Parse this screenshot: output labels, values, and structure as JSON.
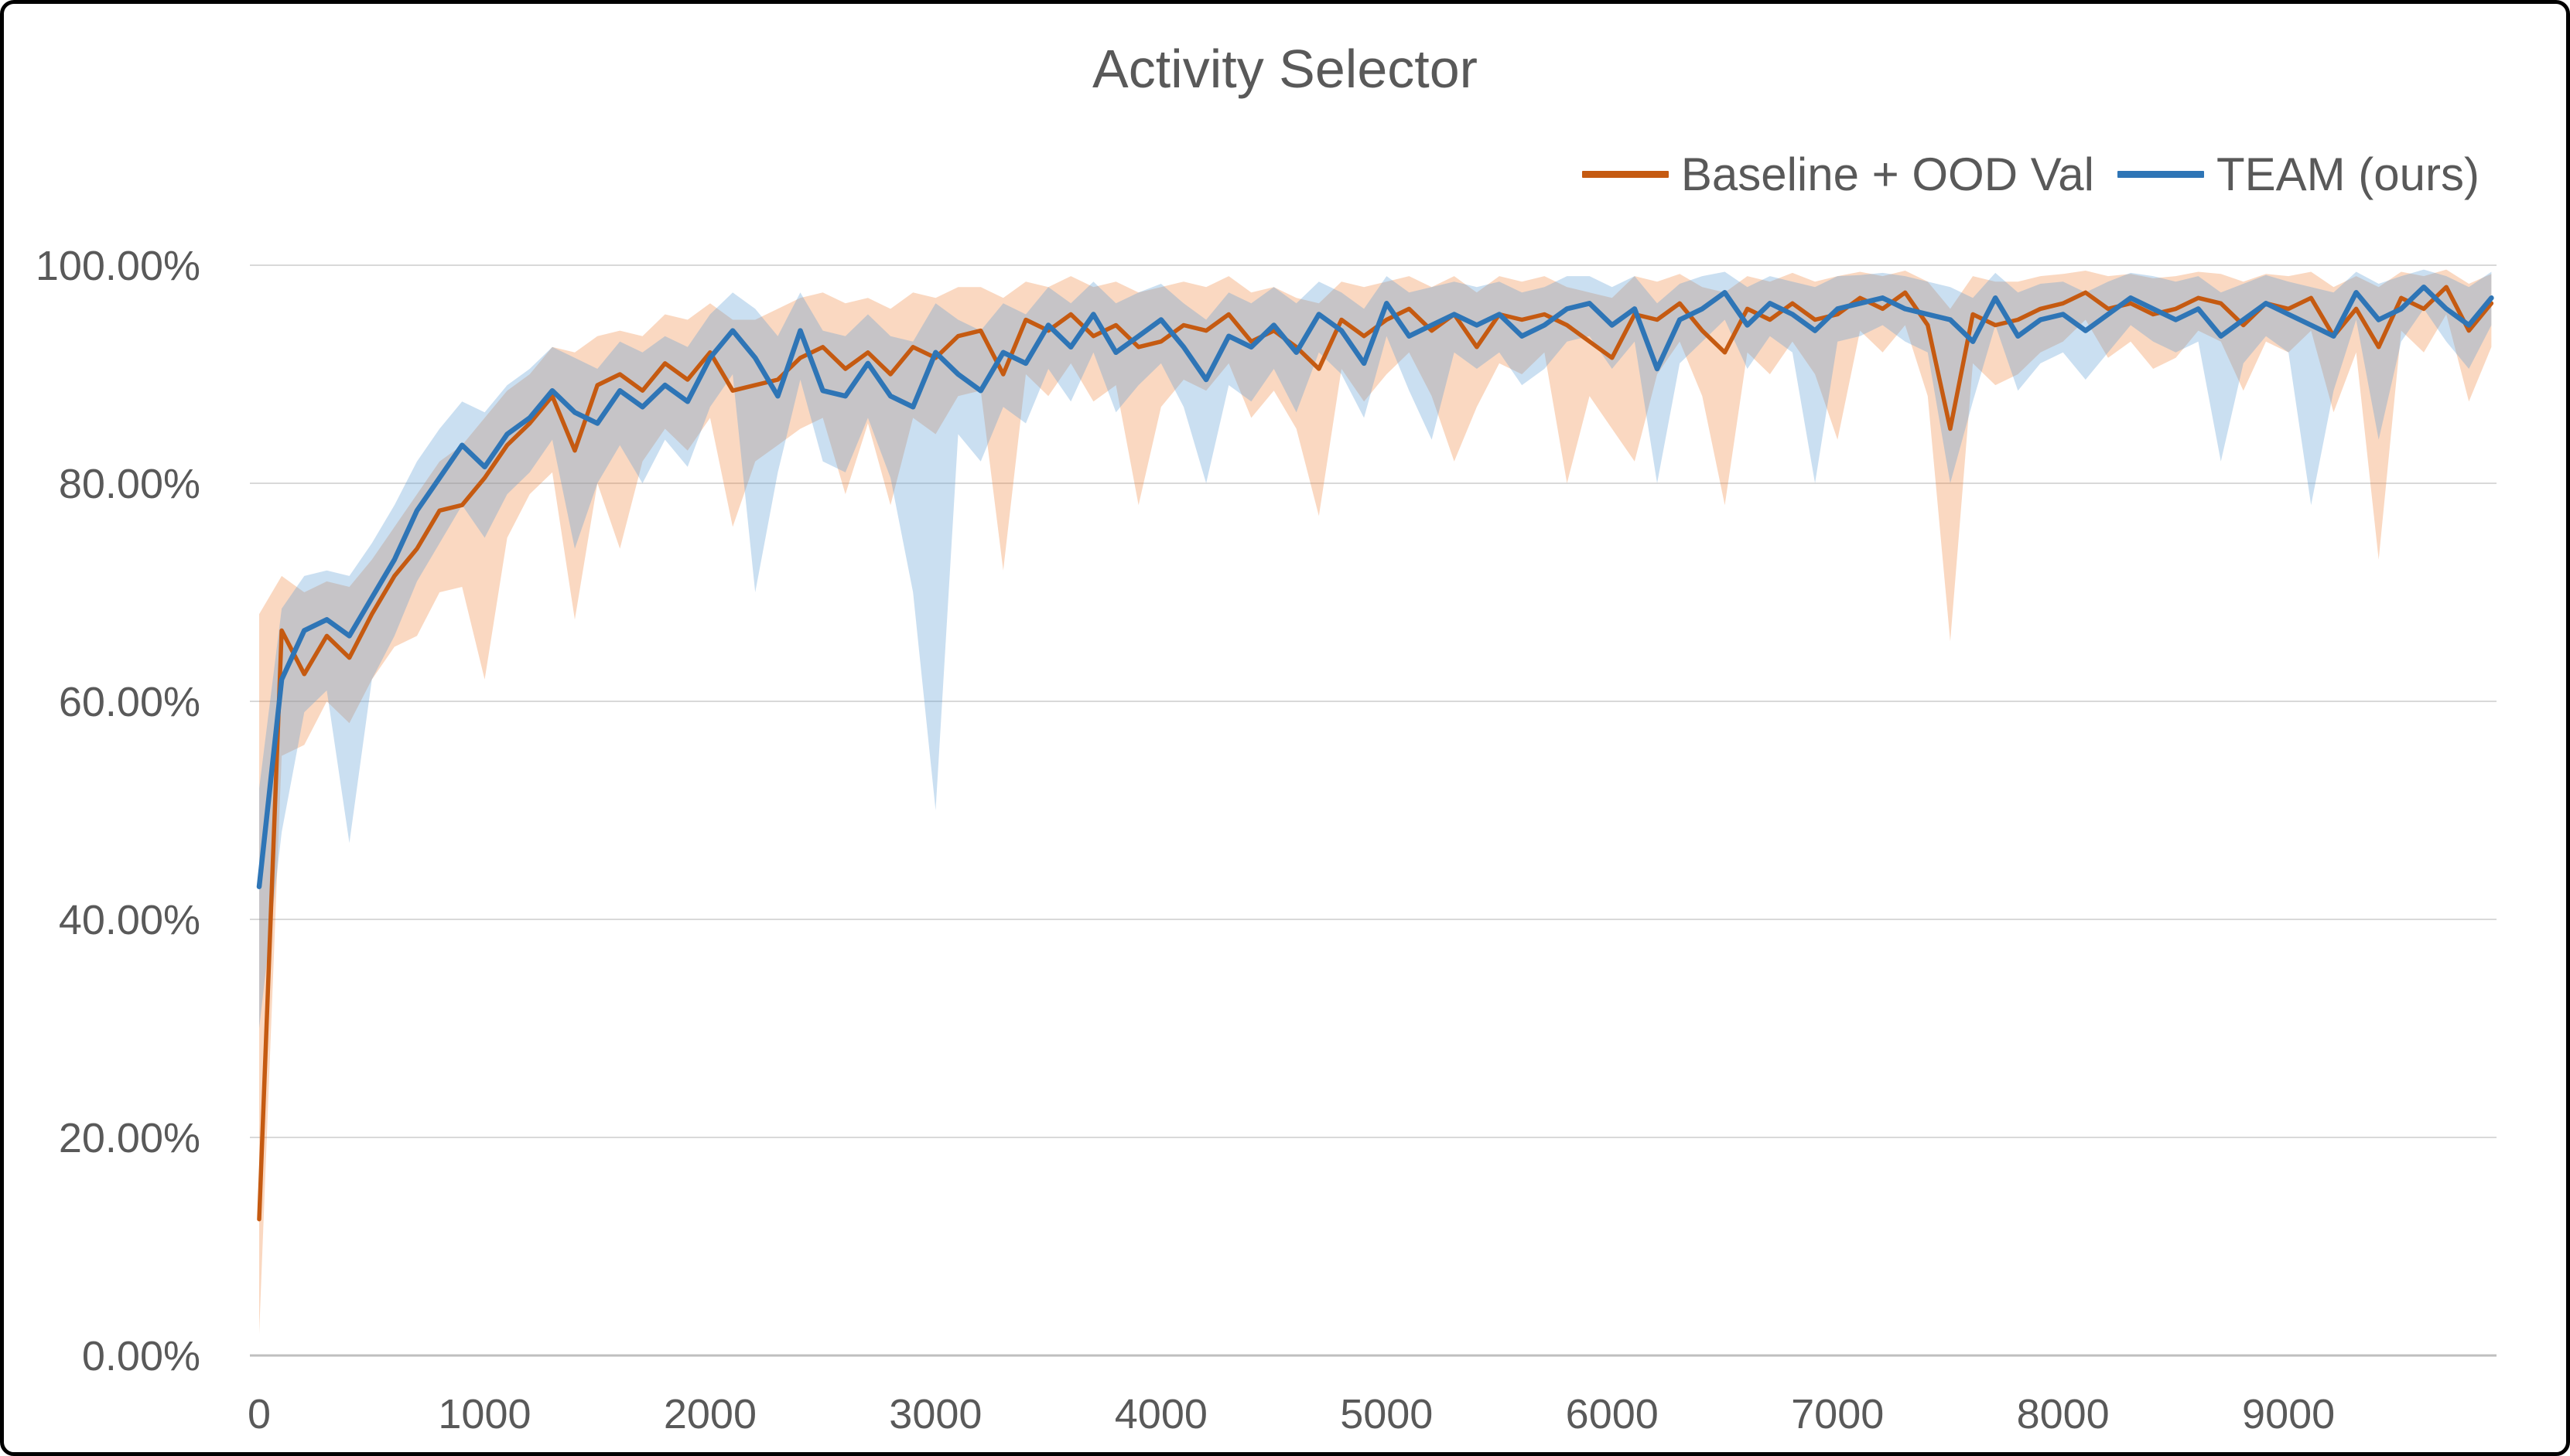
{
  "chart_data": {
    "type": "line",
    "title": "Activity Selector",
    "xlabel": "",
    "ylabel": "",
    "xlim": [
      0,
      9950
    ],
    "ylim": [
      0,
      100
    ],
    "grid": "horizontal",
    "legend_position": "top-right",
    "text_color": "#595959",
    "grid_color": "#D9D9D9",
    "axis_color": "#BFBFBF",
    "x_ticks": {
      "values": [
        0,
        1000,
        2000,
        3000,
        4000,
        5000,
        6000,
        7000,
        8000,
        9000
      ],
      "labels": [
        "0",
        "1000",
        "2000",
        "3000",
        "4000",
        "5000",
        "6000",
        "7000",
        "8000",
        "9000"
      ]
    },
    "y_ticks": {
      "values": [
        0,
        20,
        40,
        60,
        80,
        100
      ],
      "labels": [
        "0.00%",
        "20.00%",
        "40.00%",
        "60.00%",
        "80.00%",
        "100.00%"
      ]
    },
    "x": [
      0,
      100,
      200,
      300,
      400,
      500,
      600,
      700,
      800,
      900,
      1000,
      1100,
      1200,
      1300,
      1400,
      1500,
      1600,
      1700,
      1800,
      1900,
      2000,
      2100,
      2200,
      2300,
      2400,
      2500,
      2600,
      2700,
      2800,
      2900,
      3000,
      3100,
      3200,
      3300,
      3400,
      3500,
      3600,
      3700,
      3800,
      3900,
      4000,
      4100,
      4200,
      4300,
      4400,
      4500,
      4600,
      4700,
      4800,
      4900,
      5000,
      5100,
      5200,
      5300,
      5400,
      5500,
      5600,
      5700,
      5800,
      5900,
      6000,
      6100,
      6200,
      6300,
      6400,
      6500,
      6600,
      6700,
      6800,
      6900,
      7000,
      7100,
      7200,
      7300,
      7400,
      7500,
      7600,
      7700,
      7800,
      7900,
      8000,
      8100,
      8200,
      8300,
      8400,
      8500,
      8600,
      8700,
      8800,
      8900,
      9000,
      9100,
      9200,
      9300,
      9400,
      9500,
      9600,
      9700,
      9800,
      9900
    ],
    "series": [
      {
        "name": "Baseline + OOD Val",
        "color": "#C55A11",
        "band_color": "rgba(237,125,49,0.30)",
        "values": [
          12.5,
          66.5,
          62.5,
          66,
          64,
          68,
          71.5,
          74,
          77.5,
          78,
          80.5,
          83.5,
          85.5,
          88,
          83,
          89,
          90,
          88.5,
          91,
          89.5,
          92,
          88.5,
          89,
          89.5,
          91.5,
          92.5,
          90.5,
          92,
          90,
          92.5,
          91.5,
          93.5,
          94,
          90,
          95,
          94,
          95.5,
          93.5,
          94.5,
          92.5,
          93,
          94.5,
          94,
          95.5,
          93,
          94,
          92.5,
          90.5,
          95,
          93.5,
          95,
          96,
          94,
          95.5,
          92.5,
          95.5,
          95,
          95.5,
          94.5,
          93,
          91.5,
          95.5,
          95,
          96.5,
          94,
          92,
          96,
          95,
          96.5,
          95,
          95.5,
          97,
          96,
          97.5,
          94.5,
          85,
          95.5,
          94.5,
          95,
          96,
          96.5,
          97.5,
          96,
          96.5,
          95.5,
          96,
          97,
          96.5,
          94.5,
          96.5,
          96,
          97,
          93.5,
          96,
          92.5,
          97,
          96,
          98,
          94,
          96.5
        ],
        "band_lo": [
          2,
          55,
          56,
          60,
          58,
          62,
          65,
          66,
          70,
          70.5,
          62,
          75,
          79,
          81,
          67.5,
          80,
          74,
          82,
          85,
          83,
          86,
          76,
          82,
          83.5,
          85,
          86,
          79,
          85.5,
          78,
          86,
          84.5,
          88,
          88.5,
          72,
          90,
          88,
          91,
          87.5,
          89,
          78,
          87,
          89.5,
          88.5,
          91,
          86,
          88.5,
          85,
          77,
          90.5,
          87.5,
          90,
          92,
          88,
          82,
          87,
          91,
          90,
          92,
          80,
          88,
          85,
          82,
          90,
          93,
          88,
          78,
          92,
          90,
          93,
          90,
          84,
          94,
          92,
          94.5,
          88,
          65.5,
          91,
          89,
          90,
          92,
          93,
          95,
          91.5,
          93,
          90.5,
          91.5,
          94,
          93,
          88.5,
          93,
          92,
          94,
          86.5,
          92,
          73,
          94,
          92,
          95.5,
          87.5,
          92.5
        ],
        "band_hi": [
          68,
          71.5,
          70,
          71,
          70.5,
          73,
          76,
          79,
          82,
          83.5,
          86,
          88.5,
          90,
          92.5,
          92,
          93.5,
          94,
          93.5,
          95.5,
          95,
          96.5,
          95,
          95,
          96,
          97,
          97.5,
          96.5,
          97,
          96,
          97.5,
          97,
          98,
          98,
          97,
          98.5,
          98,
          99,
          98,
          98.5,
          97.5,
          98,
          98.5,
          98,
          99,
          97.5,
          98,
          97,
          96.5,
          98.5,
          98,
          98.5,
          99,
          98,
          99,
          97.5,
          99,
          98.5,
          99,
          98,
          97.5,
          97,
          99,
          98.5,
          99.2,
          98,
          97.5,
          99,
          98.5,
          99.3,
          98.5,
          99,
          99.4,
          99,
          99.5,
          98.5,
          96,
          99,
          98.5,
          98.5,
          99,
          99.2,
          99.5,
          99,
          99.2,
          98.8,
          99,
          99.4,
          99.2,
          98.5,
          99.2,
          99,
          99.4,
          98,
          99,
          98,
          99.4,
          99,
          99.6,
          98.3,
          99.2
        ]
      },
      {
        "name": "TEAM (ours)",
        "color": "#2E75B6",
        "band_color": "rgba(91,155,213,0.32)",
        "values": [
          43,
          62,
          66.5,
          67.5,
          66,
          69.5,
          73,
          77.5,
          80.5,
          83.5,
          81.5,
          84.5,
          86,
          88.5,
          86.5,
          85.5,
          88.5,
          87,
          89,
          87.5,
          91.5,
          94,
          91.5,
          88,
          94,
          88.5,
          88,
          91,
          88,
          87,
          92,
          90,
          88.5,
          92,
          91,
          94.5,
          92.5,
          95.5,
          92,
          93.5,
          95,
          92.5,
          89.5,
          93.5,
          92.5,
          94.5,
          92,
          95.5,
          94,
          91,
          96.5,
          93.5,
          94.5,
          95.5,
          94.5,
          95.5,
          93.5,
          94.5,
          96,
          96.5,
          94.5,
          96,
          90.5,
          95,
          96,
          97.5,
          94.5,
          96.5,
          95.5,
          94,
          96,
          96.5,
          97,
          96,
          95.5,
          95,
          93,
          97,
          93.5,
          95,
          95.5,
          94,
          95.5,
          97,
          96,
          95,
          96,
          93.5,
          95,
          96.5,
          95.5,
          94.5,
          93.5,
          97.5,
          95,
          96,
          98,
          96,
          94.5,
          97
        ],
        "band_lo": [
          30,
          48,
          59,
          61,
          47,
          62,
          66,
          71,
          74.5,
          78,
          75,
          79,
          81,
          84,
          74,
          80,
          83.5,
          80,
          84,
          81.5,
          87,
          90,
          70,
          81,
          89.5,
          82,
          81,
          86,
          80.5,
          70,
          50,
          84.5,
          82,
          87,
          85.5,
          90.5,
          87.5,
          92,
          86.5,
          89,
          91,
          87,
          80,
          89,
          87.5,
          90.5,
          86.5,
          92,
          90,
          86,
          93.5,
          88.5,
          84,
          92,
          90.5,
          92,
          89,
          90.5,
          93,
          93.5,
          90.5,
          93,
          80,
          91,
          93,
          95,
          90.5,
          93.5,
          92,
          80,
          93,
          93.5,
          94.5,
          93,
          92,
          80,
          87.5,
          94.5,
          88.5,
          91,
          92,
          89.5,
          92,
          94.5,
          93,
          92,
          93,
          82,
          91,
          93.5,
          92,
          78,
          88.5,
          95,
          84,
          93,
          96,
          93,
          90.5,
          94.5
        ],
        "band_hi": [
          52,
          68.5,
          71.5,
          72,
          71.5,
          74.5,
          78,
          82,
          85,
          87.5,
          86.5,
          89,
          90.5,
          92.5,
          91.5,
          90.5,
          93,
          92,
          93.5,
          92.5,
          95.5,
          97.5,
          96,
          93.5,
          97.5,
          94,
          93.5,
          95.5,
          93.5,
          93,
          96.5,
          95,
          94,
          96.5,
          95.5,
          98,
          96.5,
          98.5,
          96.5,
          97.5,
          98.3,
          96.5,
          95,
          97.5,
          96.5,
          98,
          96.5,
          98.5,
          97.5,
          96,
          99,
          97.5,
          98,
          98.5,
          98,
          98.5,
          97.5,
          98,
          99,
          99,
          98,
          99,
          96.5,
          98.3,
          99,
          99.4,
          98,
          99,
          98.5,
          98,
          99,
          99.1,
          99.3,
          99,
          98.5,
          98,
          97,
          99.3,
          97.5,
          98.3,
          98.5,
          97.5,
          98.5,
          99.3,
          99,
          98.5,
          99,
          97.5,
          98.3,
          99.1,
          98.5,
          98,
          97.5,
          99.4,
          98.3,
          99,
          99.6,
          99,
          98,
          99.4
        ]
      }
    ]
  }
}
